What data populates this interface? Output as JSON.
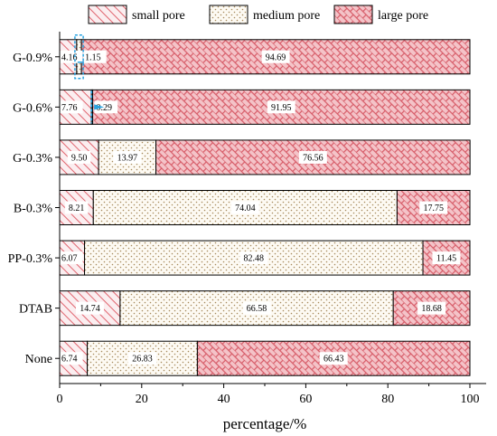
{
  "chart_data": {
    "type": "bar",
    "orientation": "horizontal",
    "stacked": true,
    "categories": [
      "G-0.9%",
      "G-0.6%",
      "G-0.3%",
      "B-0.3%",
      "PP-0.3%",
      "DTAB",
      "None"
    ],
    "series": [
      {
        "name": "small pore",
        "pattern": "diagonal-hatch",
        "color": "#e0646e",
        "values": [
          4.16,
          7.76,
          9.5,
          8.21,
          6.07,
          14.74,
          6.74
        ]
      },
      {
        "name": "medium pore",
        "pattern": "dots",
        "color": "#b8a07a",
        "values": [
          1.15,
          0.29,
          13.97,
          74.04,
          82.48,
          66.58,
          26.83
        ]
      },
      {
        "name": "large pore",
        "pattern": "brick-weave",
        "color": "#e0646e",
        "values": [
          94.69,
          91.95,
          76.56,
          17.75,
          11.45,
          18.68,
          66.43
        ]
      }
    ],
    "value_labels": [
      [
        "4.16",
        "1.15",
        "94.69"
      ],
      [
        "7.76",
        "0.29",
        "91.95"
      ],
      [
        "9.50",
        "13.97",
        "76.56"
      ],
      [
        "8.21",
        "74.04",
        "17.75"
      ],
      [
        "6.07",
        "82.48",
        "11.45"
      ],
      [
        "14.74",
        "66.58",
        "18.68"
      ],
      [
        "6.74",
        "26.83",
        "66.43"
      ]
    ],
    "xlabel": "percentage/%",
    "ylabel": "",
    "xlim": [
      0,
      100
    ],
    "xticks": [
      "0",
      "20",
      "40",
      "60",
      "80",
      "100"
    ],
    "legend_position": "top",
    "grid": false,
    "highlight_color": "#29a3e0"
  }
}
